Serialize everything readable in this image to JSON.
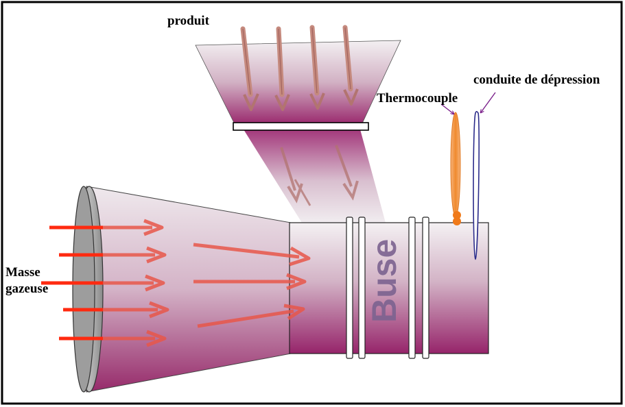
{
  "labels": {
    "produit": "produit",
    "thermocouple": "Thermocouple",
    "conduite": "conduite de dépression",
    "masse_line1": "Masse",
    "masse_line2": "gazeuse",
    "buse": "Buse"
  },
  "colors": {
    "body_top": "#f2eef1",
    "body_bottom": "#98286c",
    "arrow_red": "#e8574a",
    "thermocouple_orange": "#f28a2e",
    "conduite_blue": "#2b2b8a",
    "pointer_purple": "#7a1f8a",
    "buse_text": "#7c6390"
  }
}
